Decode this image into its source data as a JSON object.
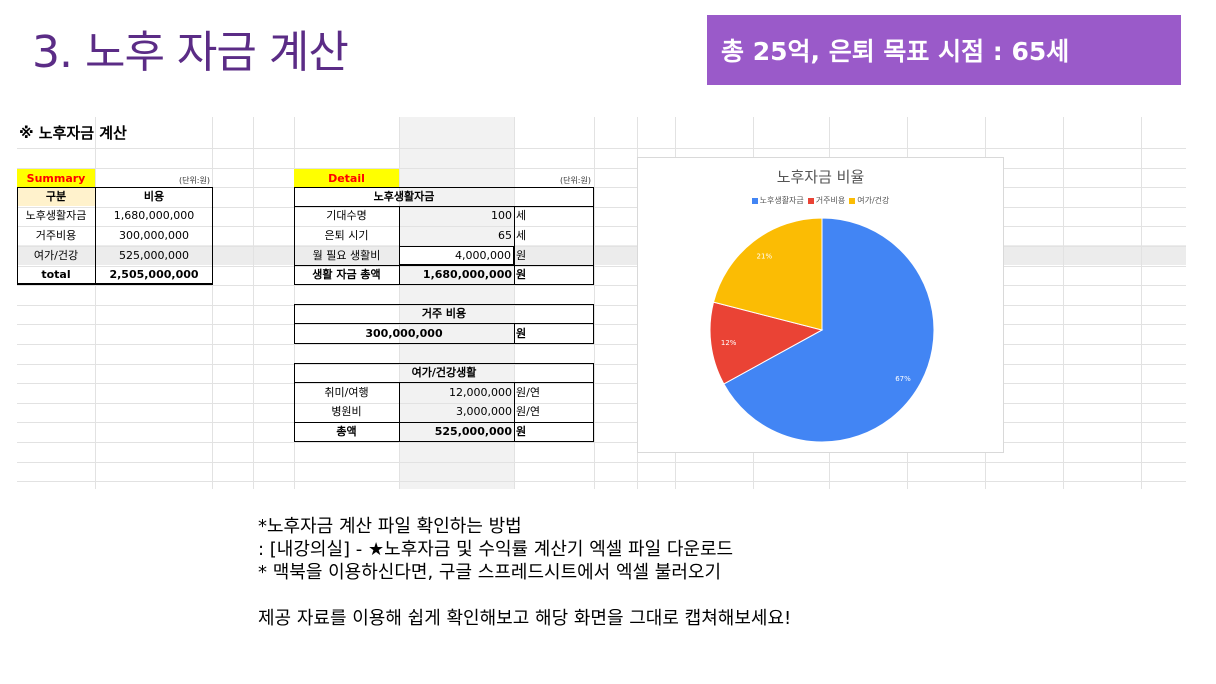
{
  "slide_title": "3. 노후 자금 계산",
  "badge": "총 25억, 은퇴 목표 시점 : 65세",
  "sheet": {
    "heading": "※ 노후자금 계산",
    "summary": {
      "label": "Summary",
      "unit": "(단위:원)",
      "headers": [
        "구분",
        "비용"
      ],
      "rows": [
        {
          "name": "노후생활자금",
          "value": "1,680,000,000"
        },
        {
          "name": "거주비용",
          "value": "300,000,000"
        },
        {
          "name": "여가/건강",
          "value": "525,000,000"
        },
        {
          "name": "total",
          "value": "2,505,000,000"
        }
      ]
    },
    "detail": {
      "label": "Detail",
      "unit": "(단위:원)",
      "living": {
        "header": "노후생활자금",
        "rows": [
          {
            "name": "기대수명",
            "value": "100",
            "unit": "세"
          },
          {
            "name": "은퇴 시기",
            "value": "65",
            "unit": "세"
          },
          {
            "name": "월 필요 생활비",
            "value": "4,000,000",
            "unit": "원"
          },
          {
            "name": "생활 자금 총액",
            "value": "1,680,000,000",
            "unit": "원"
          }
        ]
      },
      "housing": {
        "header": "거주 비용",
        "value": "300,000,000",
        "unit": "원"
      },
      "leisure": {
        "header": "여가/건강생활",
        "rows": [
          {
            "name": "취미/여행",
            "value": "12,000,000",
            "unit": "원/연"
          },
          {
            "name": "병원비",
            "value": "3,000,000",
            "unit": "원/연"
          },
          {
            "name": "총액",
            "value": "525,000,000",
            "unit": "원"
          }
        ]
      }
    }
  },
  "chart_data": {
    "type": "pie",
    "title": "노후자금 비율",
    "categories": [
      "노후생활자금",
      "거주비용",
      "여가/건강"
    ],
    "values": [
      67,
      12,
      21
    ],
    "labels": [
      "67%",
      "12%",
      "21%"
    ],
    "colors": [
      "#4285f4",
      "#ea4335",
      "#fbbc04"
    ],
    "legend": "top"
  },
  "notes": [
    "*노후자금 계산 파일 확인하는 방법",
    ": [내강의실] - ★노후자금 및 수익률 계산기 엑셀 파일 다운로드",
    "* 맥북을 이용하신다면, 구글 스프레드시트에서 엑셀 불러오기",
    "",
    "제공 자료를 이용해 쉽게 확인해보고 해당 화면을 그대로 캡쳐해보세요!"
  ]
}
